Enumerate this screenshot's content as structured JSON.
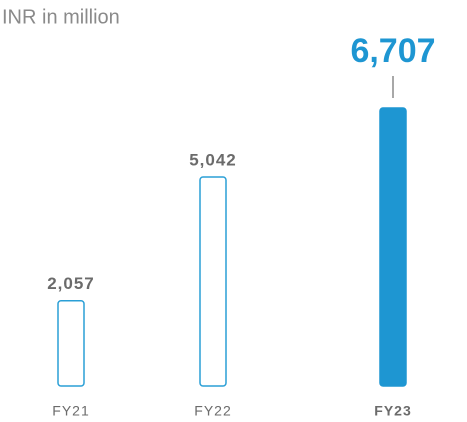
{
  "chart_data": {
    "type": "bar",
    "subtitle": "INR in million",
    "categories": [
      "FY21",
      "FY22",
      "FY23"
    ],
    "values": [
      2057,
      5042,
      6707
    ],
    "value_labels": [
      "2,057",
      "5,042",
      "6,707"
    ],
    "colors": [
      "#ffffff",
      "#ffffff",
      "#1e96d2"
    ],
    "edge_color": "#2a9fd6"
  }
}
